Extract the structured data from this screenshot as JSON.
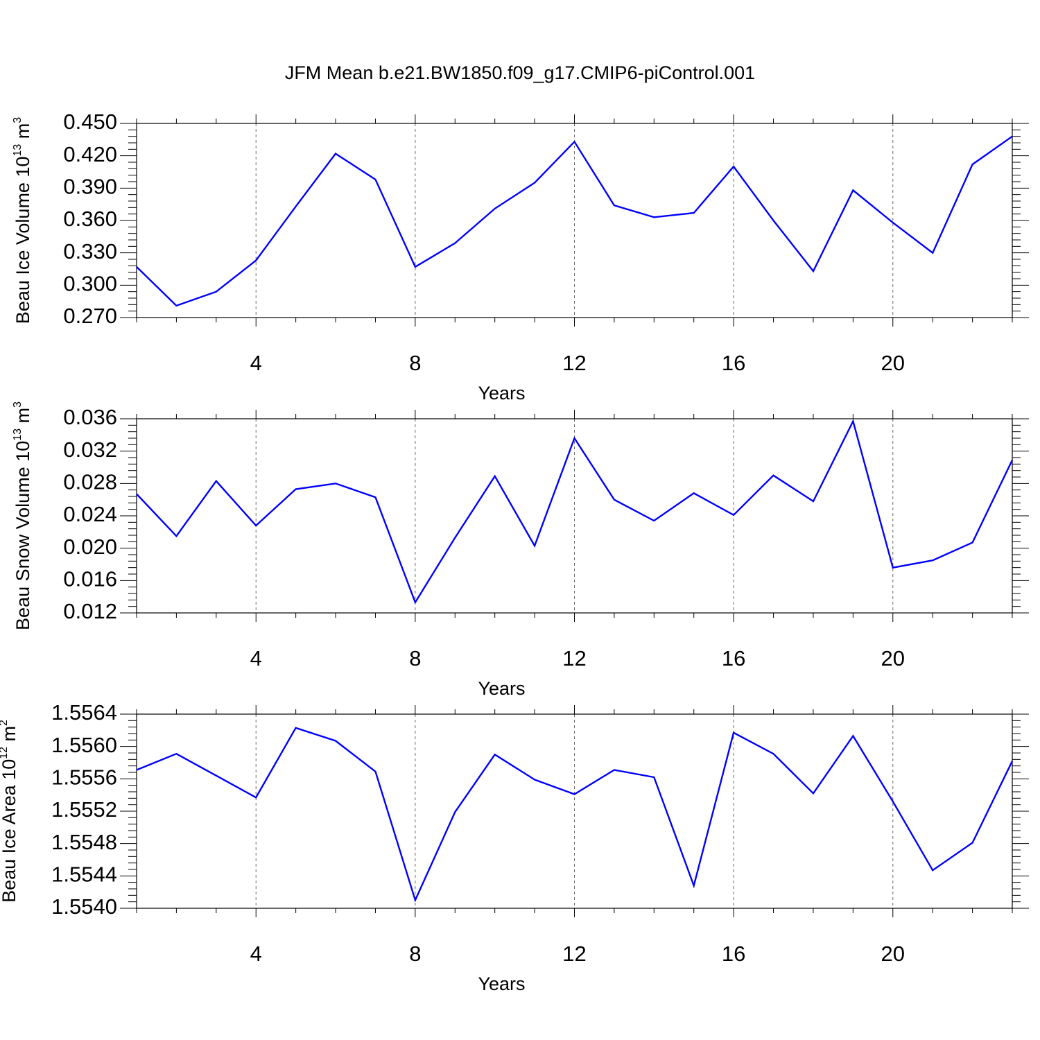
{
  "title": "JFM Mean b.e21.BW1850.f09_g17.CMIP6-piControl.001",
  "chart_data": [
    {
      "type": "line",
      "title": "",
      "xlabel": "Years",
      "ylabel": {
        "text": "Beau Ice Volume 10",
        "exp": "13",
        "unit": " m",
        "unit_exp": "3"
      },
      "xlim": [
        1,
        23
      ],
      "ylim": [
        0.27,
        0.45
      ],
      "x_ticks": [
        4,
        8,
        12,
        16,
        20
      ],
      "x_tick_labels": [
        "4",
        "8",
        "12",
        "16",
        "20"
      ],
      "y_ticks": [
        0.27,
        0.3,
        0.33,
        0.36,
        0.39,
        0.42,
        0.45
      ],
      "y_tick_labels": [
        "0.270",
        "0.300",
        "0.330",
        "0.360",
        "0.390",
        "0.420",
        "0.450"
      ],
      "grid": "vertical dashed at major x ticks",
      "series": [
        {
          "color": "#0000ff",
          "x": [
            1,
            2,
            3,
            4,
            5,
            6,
            7,
            8,
            9,
            10,
            11,
            12,
            13,
            14,
            15,
            16,
            17,
            18,
            19,
            20,
            21,
            22,
            23
          ],
          "values": [
            0.317,
            0.281,
            0.294,
            0.323,
            0.373,
            0.422,
            0.398,
            0.317,
            0.339,
            0.371,
            0.395,
            0.433,
            0.374,
            0.363,
            0.367,
            0.41,
            0.36,
            0.313,
            0.388,
            0.358,
            0.33,
            0.412,
            0.438
          ]
        }
      ]
    },
    {
      "type": "line",
      "title": "",
      "xlabel": "Years",
      "ylabel": {
        "text": "Beau Snow Volume 10",
        "exp": "13",
        "unit": " m",
        "unit_exp": "3"
      },
      "xlim": [
        1,
        23
      ],
      "ylim": [
        0.012,
        0.036
      ],
      "x_ticks": [
        4,
        8,
        12,
        16,
        20
      ],
      "x_tick_labels": [
        "4",
        "8",
        "12",
        "16",
        "20"
      ],
      "y_ticks": [
        0.012,
        0.016,
        0.02,
        0.024,
        0.028,
        0.032,
        0.036
      ],
      "y_tick_labels": [
        "0.012",
        "0.016",
        "0.020",
        "0.024",
        "0.028",
        "0.032",
        "0.036"
      ],
      "grid": "vertical dashed at major x ticks",
      "series": [
        {
          "color": "#0000ff",
          "x": [
            1,
            2,
            3,
            4,
            5,
            6,
            7,
            8,
            9,
            10,
            11,
            12,
            13,
            14,
            15,
            16,
            17,
            18,
            19,
            20,
            21,
            22,
            23
          ],
          "values": [
            0.0267,
            0.0215,
            0.0283,
            0.0228,
            0.0273,
            0.028,
            0.0263,
            0.0133,
            0.0213,
            0.0289,
            0.0203,
            0.0336,
            0.026,
            0.0234,
            0.0268,
            0.0241,
            0.029,
            0.0258,
            0.0357,
            0.0176,
            0.0185,
            0.0207,
            0.0309
          ]
        }
      ]
    },
    {
      "type": "line",
      "title": "",
      "xlabel": "Years",
      "ylabel": {
        "text": "Beau Ice Area 10",
        "exp": "12",
        "unit": " m",
        "unit_exp": "2"
      },
      "xlim": [
        1,
        23
      ],
      "ylim": [
        1.554,
        1.5564
      ],
      "x_ticks": [
        4,
        8,
        12,
        16,
        20
      ],
      "x_tick_labels": [
        "4",
        "8",
        "12",
        "16",
        "20"
      ],
      "y_ticks": [
        1.554,
        1.5544,
        1.5548,
        1.5552,
        1.5556,
        1.556,
        1.5564
      ],
      "y_tick_labels": [
        "1.5540",
        "1.5544",
        "1.5548",
        "1.5552",
        "1.5556",
        "1.5560",
        "1.5564"
      ],
      "grid": "vertical dashed at major x ticks",
      "series": [
        {
          "color": "#0000ff",
          "x": [
            1,
            2,
            3,
            4,
            5,
            6,
            7,
            8,
            9,
            10,
            11,
            12,
            13,
            14,
            15,
            16,
            17,
            18,
            19,
            20,
            21,
            22,
            23
          ],
          "values": [
            1.55571,
            1.55591,
            1.55564,
            1.55537,
            1.55623,
            1.55607,
            1.55569,
            1.5541,
            1.55519,
            1.5559,
            1.55559,
            1.55541,
            1.55571,
            1.55562,
            1.55428,
            1.55617,
            1.55591,
            1.55542,
            1.55613,
            1.55532,
            1.55447,
            1.55481,
            1.55582
          ]
        }
      ]
    }
  ]
}
